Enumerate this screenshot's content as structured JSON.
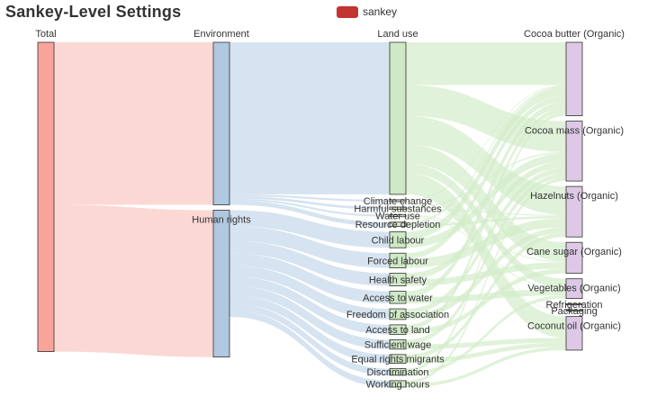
{
  "title": "Sankey-Level Settings",
  "legend": {
    "label": "sankey",
    "color": "#c23531"
  },
  "chart_data": {
    "type": "sankey",
    "title": "Sankey-Level Settings",
    "series_name": "sankey",
    "level_labels": [
      "Total",
      "Environment",
      "Land use",
      "Cocoa butter (Organic)"
    ],
    "levels": [
      {
        "depth": 0,
        "color": "#f8a49b",
        "link_color": "#fbc8c2"
      },
      {
        "depth": 1,
        "color": "#b0c8e0",
        "link_color": "#c5d7e9"
      },
      {
        "depth": 2,
        "color": "#cfe8c5",
        "link_color": "#d3ecc9"
      },
      {
        "depth": 3,
        "color": "#ddc9e6",
        "link_color": "#ddc9e6"
      }
    ],
    "nodes": [
      {
        "name": "Total",
        "depth": 0
      },
      {
        "name": "Environment",
        "depth": 1
      },
      {
        "name": "Human rights",
        "depth": 1
      },
      {
        "name": "Land use",
        "depth": 2
      },
      {
        "name": "Climate change",
        "depth": 2
      },
      {
        "name": "Harmful substances",
        "depth": 2
      },
      {
        "name": "Water use",
        "depth": 2
      },
      {
        "name": "Resource depletion",
        "depth": 2
      },
      {
        "name": "Child labour",
        "depth": 2
      },
      {
        "name": "Forced labour",
        "depth": 2
      },
      {
        "name": "Health safety",
        "depth": 2
      },
      {
        "name": "Access to water",
        "depth": 2
      },
      {
        "name": "Freedom of association",
        "depth": 2
      },
      {
        "name": "Access to land",
        "depth": 2
      },
      {
        "name": "Sufficient wage",
        "depth": 2
      },
      {
        "name": "Equal rights migrants",
        "depth": 2
      },
      {
        "name": "Discrimination",
        "depth": 2
      },
      {
        "name": "Working hours",
        "depth": 2
      },
      {
        "name": "Cocoa butter (Organic)",
        "depth": 3
      },
      {
        "name": "Cocoa mass (Organic)",
        "depth": 3
      },
      {
        "name": "Hazelnuts (Organic)",
        "depth": 3
      },
      {
        "name": "Cane sugar (Organic)",
        "depth": 3
      },
      {
        "name": "Vegetables (Organic)",
        "depth": 3
      },
      {
        "name": "Refrigeration",
        "depth": 3
      },
      {
        "name": "Packaging",
        "depth": 3
      },
      {
        "name": "Coconut oil (Organic)",
        "depth": 3
      }
    ],
    "links": [
      {
        "source": "Total",
        "target": "Environment",
        "value": 0.342
      },
      {
        "source": "Total",
        "target": "Human rights",
        "value": 0.309
      },
      {
        "source": "Environment",
        "target": "Land use",
        "value": 0.32
      },
      {
        "source": "Environment",
        "target": "Climate change",
        "value": 0.004
      },
      {
        "source": "Environment",
        "target": "Harmful substances",
        "value": 0.005
      },
      {
        "source": "Environment",
        "target": "Water use",
        "value": 0.004
      },
      {
        "source": "Environment",
        "target": "Resource depletion",
        "value": 0.009
      },
      {
        "source": "Human rights",
        "target": "Child labour",
        "value": 0.0336
      },
      {
        "source": "Human rights",
        "target": "Forced labour",
        "value": 0.0309
      },
      {
        "source": "Human rights",
        "target": "Health safety",
        "value": 0.0266
      },
      {
        "source": "Human rights",
        "target": "Access to water",
        "value": 0.0255
      },
      {
        "source": "Human rights",
        "target": "Freedom of association",
        "value": 0.0224
      },
      {
        "source": "Human rights",
        "target": "Access to land",
        "value": 0.02
      },
      {
        "source": "Human rights",
        "target": "Sufficient wage",
        "value": 0.0197
      },
      {
        "source": "Human rights",
        "target": "Equal rights migrants",
        "value": 0.0184
      },
      {
        "source": "Human rights",
        "target": "Discrimination",
        "value": 0.0139
      },
      {
        "source": "Human rights",
        "target": "Working hours",
        "value": 0.0135
      },
      {
        "source": "Land use",
        "target": "Cocoa butter (Organic)",
        "value": 0.09
      },
      {
        "source": "Land use",
        "target": "Cocoa mass (Organic)",
        "value": 0.065
      },
      {
        "source": "Land use",
        "target": "Hazelnuts (Organic)",
        "value": 0.06
      },
      {
        "source": "Land use",
        "target": "Cane sugar (Organic)",
        "value": 0.04
      },
      {
        "source": "Land use",
        "target": "Vegetables (Organic)",
        "value": 0.02
      },
      {
        "source": "Land use",
        "target": "Coconut oil (Organic)",
        "value": 0.045
      },
      {
        "source": "Climate change",
        "target": "Cocoa butter (Organic)",
        "value": 0.002
      },
      {
        "source": "Climate change",
        "target": "Refrigeration",
        "value": 0.001
      },
      {
        "source": "Climate change",
        "target": "Packaging",
        "value": 0.001
      },
      {
        "source": "Harmful substances",
        "target": "Cocoa mass (Organic)",
        "value": 0.003
      },
      {
        "source": "Harmful substances",
        "target": "Hazelnuts (Organic)",
        "value": 0.002
      },
      {
        "source": "Water use",
        "target": "Cane sugar (Organic)",
        "value": 0.002
      },
      {
        "source": "Water use",
        "target": "Vegetables (Organic)",
        "value": 0.002
      },
      {
        "source": "Resource depletion",
        "target": "Cocoa butter (Organic)",
        "value": 0.004
      },
      {
        "source": "Resource depletion",
        "target": "Hazelnuts (Organic)",
        "value": 0.005
      },
      {
        "source": "Child labour",
        "target": "Cocoa butter (Organic)",
        "value": 0.0168
      },
      {
        "source": "Child labour",
        "target": "Cocoa mass (Organic)",
        "value": 0.0168
      },
      {
        "source": "Forced labour",
        "target": "Cocoa butter (Organic)",
        "value": 0.012
      },
      {
        "source": "Forced labour",
        "target": "Hazelnuts (Organic)",
        "value": 0.0189
      },
      {
        "source": "Health safety",
        "target": "Cocoa mass (Organic)",
        "value": 0.0133
      },
      {
        "source": "Health safety",
        "target": "Cane sugar (Organic)",
        "value": 0.0133
      },
      {
        "source": "Access to water",
        "target": "Cocoa butter (Organic)",
        "value": 0.0128
      },
      {
        "source": "Access to water",
        "target": "Vegetables (Organic)",
        "value": 0.0127
      },
      {
        "source": "Freedom of association",
        "target": "Cocoa mass (Organic)",
        "value": 0.0112
      },
      {
        "source": "Freedom of association",
        "target": "Hazelnuts (Organic)",
        "value": 0.0112
      },
      {
        "source": "Access to land",
        "target": "Cocoa butter (Organic)",
        "value": 0.01
      },
      {
        "source": "Access to land",
        "target": "Cane sugar (Organic)",
        "value": 0.01
      },
      {
        "source": "Sufficient wage",
        "target": "Cocoa mass (Organic)",
        "value": 0.0099
      },
      {
        "source": "Sufficient wage",
        "target": "Coconut oil (Organic)",
        "value": 0.0098
      },
      {
        "source": "Equal rights migrants",
        "target": "Hazelnuts (Organic)",
        "value": 0.0092
      },
      {
        "source": "Equal rights migrants",
        "target": "Coconut oil (Organic)",
        "value": 0.0092
      },
      {
        "source": "Discrimination",
        "target": "Cocoa butter (Organic)",
        "value": 0.007
      },
      {
        "source": "Discrimination",
        "target": "Vegetables (Organic)",
        "value": 0.0069
      },
      {
        "source": "Working hours",
        "target": "Cocoa mass (Organic)",
        "value": 0.0068
      },
      {
        "source": "Working hours",
        "target": "Coconut oil (Organic)",
        "value": 0.0067
      }
    ]
  }
}
